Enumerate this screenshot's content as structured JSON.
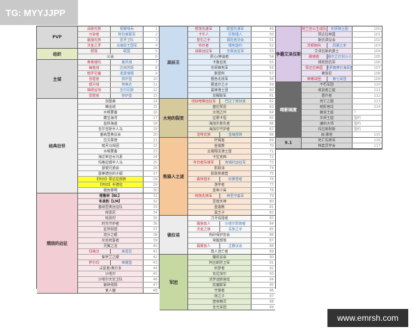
{
  "watermark": "TG: MYYJJPP",
  "site": "www.emrsh.com",
  "colors": {
    "faction_a": "#c2344a",
    "faction_b": "#3d7cc0",
    "highlight": "#ffff33"
  },
  "blocks": [
    {
      "groups": [
        {
          "name": "PVP",
          "cat_bg": "#d9d9d9",
          "row_bg": "#f2f2f2",
          "rows": [
            {
              "n": "1",
              "a": "战歌氏族",
              "b": "银翼哨兵"
            },
            {
              "n": "2",
              "a": "污染者",
              "b": "阿拉索联军"
            },
            {
              "n": "3",
              "a": "霜狼氏族",
              "b": "雷矛卫队"
            },
            {
              "n": "4",
              "a": "沃金之矛",
              "b": "乌瑞恩王国军"
            }
          ]
        },
        {
          "name": "组织",
          "cat_bg": "#e4ebc4",
          "row_bg": "#f2f2f2",
          "rows": [
            {
              "n": "5",
              "a": "部落",
              "b": "联盟"
            },
            {
              "n": "6",
              "t": "公会"
            }
          ]
        },
        {
          "name": "主城",
          "cat_bg": "#d9d9d9",
          "row_bg": "#f2f2f2",
          "rows": [
            {
              "n": "7",
              "a": "奥格瑞玛",
              "b": "暴风城"
            },
            {
              "n": "8",
              "a": "幽暗城",
              "b": "达纳苏斯"
            },
            {
              "n": "9",
              "a": "暗矛巨魔",
              "b": "诺莫瑞根"
            },
            {
              "n": "10",
              "a": "雷霆崖",
              "b": "铁炉堡"
            },
            {
              "n": "11",
              "a": "银月城",
              "b": "埃索达"
            },
            {
              "n": "12",
              "a": "锦绣谷地",
              "b": "吉尔尼斯"
            },
            {
              "n": "13",
              "a": "雷霆崖",
              "b": "铁炉堡"
            }
          ]
        },
        {
          "name": "经典旧世",
          "cat_bg": "#ececec",
          "row_bg": "#f7f7f7",
          "rows": [
            {
              "n": "14",
              "t": "加基森"
            },
            {
              "n": "15",
              "t": "棘齿城"
            },
            {
              "n": "16",
              "t": "木喉要塞"
            },
            {
              "n": "17",
              "t": "藏宝海湾"
            },
            {
              "n": "18",
              "t": "血帆海盗"
            },
            {
              "n": "19",
              "t": "吉尔吉斯半人马"
            },
            {
              "n": "20",
              "t": "塞纳里奥议会"
            },
            {
              "n": "21",
              "t": "拉文霍德"
            },
            {
              "n": "22",
              "t": "暗月马戏团"
            },
            {
              "n": "23",
              "t": "木喉要塞"
            },
            {
              "n": "24",
              "t": "海达希亚水元素"
            },
            {
              "n": "25",
              "t": "玛格拉姆半人马"
            },
            {
              "n": "26",
              "t": "瑟银兄弟会"
            },
            {
              "n": "27",
              "t": "瑟莱德丝的子嗣"
            },
            {
              "n": "28",
              "t": "【怀旧】赞达拉部族",
              "hl": true
            },
            {
              "n": "29",
              "t": "【怀旧】手德拉",
              "hl": true
            },
            {
              "n": "30",
              "t": "银色黎明"
            }
          ]
        },
        {
          "name": "燃烧的远征",
          "cat_bg": "#f2cdd3",
          "row_bg": "#f9e6e9",
          "rows": [
            {
              "n": "31",
              "t": "塔鲁林【BL】",
              "bold": true
            },
            {
              "n": "32",
              "t": "冬泉豹【LM】",
              "bold": true
            },
            {
              "n": "33",
              "t": "塞纳里奥远征队"
            },
            {
              "n": "34",
              "t": "库雷尼"
            },
            {
              "n": "35",
              "t": "哈孜村"
            },
            {
              "n": "36",
              "t": "时光守护者"
            },
            {
              "n": "37",
              "t": "星界财团"
            },
            {
              "n": "38",
              "t": "流沙之眼"
            },
            {
              "n": "39",
              "t": "灰舌死誓者"
            },
            {
              "n": "40",
              "t": "灵翼之龙"
            },
            {
              "n": "41",
              "a": "玛格汉",
              "b": "库雷尼"
            },
            {
              "n": "42",
              "t": "紫罗兰之眼"
            },
            {
              "n": "43",
              "a": "萨尔玛",
              "b": "荣耀堡"
            },
            {
              "n": "44",
              "t": "占星者/奥尔多"
            },
            {
              "n": "45",
              "t": "沙塔尔"
            },
            {
              "n": "46",
              "t": "沙塔尔天空卫队"
            },
            {
              "n": "47",
              "t": "破碎残阳"
            },
            {
              "n": "48",
              "t": "食人魔"
            }
          ]
        }
      ]
    },
    {
      "groups": [
        {
          "name": "巫妖王",
          "cat_bg": "#c9dcf0",
          "row_bg": "#e4eef9",
          "rows": [
            {
              "n": "49",
              "a": "部落先遣军",
              "b": "联盟先遣军"
            },
            {
              "n": "50",
              "a": "卡牛人",
              "b": "巨熊猎人"
            },
            {
              "n": "51",
              "a": "复仇之手",
              "b": "探险者协会"
            },
            {
              "n": "52",
              "a": "夺日者",
              "b": "银色盟约"
            },
            {
              "n": "53",
              "a": "战歌远征军",
              "b": "无畏远征军"
            },
            {
              "n": "54",
              "t": "肝心/神谕者"
            },
            {
              "n": "55",
              "t": "卡鲁亚克"
            },
            {
              "n": "56",
              "t": "灰烬审判军"
            },
            {
              "n": "57",
              "t": "斯雷利"
            },
            {
              "n": "58",
              "t": "银色北伐军"
            },
            {
              "n": "59",
              "t": "霍迪尔之子"
            },
            {
              "n": "60",
              "t": "黑锋骑士团"
            },
            {
              "n": "61",
              "t": "龙眠联军"
            }
          ]
        },
        {
          "name": "大地的裂变",
          "cat_bg": "#d6c99c",
          "row_bg": "#efe9d3",
          "rows": [
            {
              "n": "62",
              "a": "地狱咆哮远征军",
              "b": "巴拉丁典狱官"
            },
            {
              "n": "63",
              "t": "塞拉赞恩"
            },
            {
              "n": "64",
              "t": "大地之环"
            },
            {
              "n": "65",
              "t": "拉穆卡恒"
            },
            {
              "n": "66",
              "t": "海加尔复仇者"
            },
            {
              "n": "67",
              "t": "海加尔守护者"
            },
            {
              "n": "68",
              "a": "龙喉氏族",
              "b": "蛮锤部族"
            }
          ]
        },
        {
          "name": "熊猫人之谜",
          "cat_bg": "#f6c799",
          "row_bg": "#fbe6d4",
          "rows": [
            {
              "n": "69",
              "t": "阡陌客"
            },
            {
              "n": "70",
              "t": "金莲教"
            },
            {
              "n": "71",
              "t": "云端翔龙骑士团"
            },
            {
              "n": "72",
              "t": "卡拉克西"
            },
            {
              "n": "73",
              "a": "夺日者先锋军",
              "b": "肯瑞托远征军"
            },
            {
              "n": "74",
              "t": "影踪派"
            },
            {
              "n": "75",
              "t": "影踪突袭营"
            },
            {
              "n": "76",
              "a": "森林猎手",
              "b": "织雾僧者"
            },
            {
              "n": "77",
              "t": "游学者"
            },
            {
              "n": "78",
              "t": "皇帝少昊"
            },
            {
              "n": "79",
              "a": "统御先锋军",
              "b": "神圣守备军"
            },
            {
              "n": "80",
              "t": "至尊天神"
            },
            {
              "n": "81",
              "t": "金莲教"
            },
            {
              "n": "82",
              "t": "黑王子"
            }
          ]
        },
        {
          "name": "德拉诺",
          "cat_bg": "#ececec",
          "row_bg": "#f7f7f7",
          "rows": [
            {
              "n": "83",
              "t": "刀牙追猎者"
            },
            {
              "n": "84",
              "a": "霜狼兽人",
              "b": "沙塔尔防御者"
            },
            {
              "n": "85",
              "a": "沃金之锋",
              "b": "先知之手"
            },
            {
              "n": "86",
              "t": "热砂保护协会"
            },
            {
              "n": "87",
              "t": "常醒部落"
            },
            {
              "n": "88",
              "a": "霜翼兽人",
              "b": "主教议会"
            },
            {
              "n": "89",
              "t": "鸦人流亡者"
            }
          ]
        },
        {
          "name": "军团",
          "cat_bg": "#c6d9a2",
          "row_bg": "#e3edd1",
          "rows": [
            {
              "n": "90",
              "t": "魔纹议会"
            },
            {
              "n": "91",
              "t": "阿古斯防卫军"
            },
            {
              "n": "92",
              "t": "织梦者"
            },
            {
              "n": "93",
              "t": "瓦拉加尔"
            },
            {
              "n": "94",
              "t": "法罗迪斯宫廷"
            },
            {
              "n": "95",
              "t": "抗魔联军"
            },
            {
              "n": "96",
              "t": "守望者"
            },
            {
              "n": "97",
              "t": "夜之子"
            },
            {
              "n": "98",
              "t": "堕夜精灵"
            },
            {
              "n": "99",
              "t": "全光军团"
            }
          ]
        }
      ]
    },
    {
      "groups": [
        {
          "name": "争霸艾泽拉斯",
          "cat_bg": "#d9c8e6",
          "row_bg": "#ede4f3",
          "rows": [
            {
              "n": "100",
              "a": "塔兰吉公主战队",
              "b": "灰烬骑士团"
            },
            {
              "n": "101",
              "t": "赞达拉帝国"
            },
            {
              "n": "102",
              "t": "斯托颂议会"
            },
            {
              "n": "103",
              "a": "沃顿佣兵",
              "b": "风暴之末"
            },
            {
              "n": "104",
              "t": "艾泽拉斯的勇士"
            },
            {
              "n": "105",
              "a": "破镜者",
              "b": "潮汐之刃剑斗人"
            },
            {
              "n": "106",
              "t": "锈栓抵抗军"
            },
            {
              "n": "107",
              "a": "赞达拉帝国",
              "b": "普罗德摩尔海军部"
            },
            {
              "n": "108",
              "t": "莱加尼"
            },
            {
              "n": "109",
              "a": "荣耀战团",
              "b": "第七军团"
            }
          ]
        },
        {
          "name": "暗影国度",
          "cat_bg": "#6b6b6b",
          "cat_fg": "#ffffff",
          "row_bg": "#d9d9d9",
          "rows": [
            {
              "n": "110",
              "t": "不朽军团"
            },
            {
              "n": "111",
              "t": "收割者之庭"
            },
            {
              "n": "112",
              "t": "晋升者"
            },
            {
              "n": "113",
              "t": "死亡之握"
            },
            {
              "n": "114",
              "t": "暗影宫廷"
            },
            {
              "n": "?",
              "t": "魅资王庭",
              "ntxt": true
            },
            {
              "n": "盟约",
              "t": "灰烬王庭",
              "ntxt": true
            },
            {
              "n": "盟约",
              "t": "编织大师",
              "ntxt": true
            },
            {
              "n": "盟约",
              "t": "玛拉斯默斯",
              "ntxt": true
            },
            {
              "n": "115",
              "t": "威·娜塔"
            }
          ]
        },
        {
          "name": "9.1",
          "cat_bg": "#c8c8c8",
          "row_bg": "#d9d9d9",
          "rows": [
            {
              "n": "116",
              "t": "死亡先锋军"
            },
            {
              "n": "117",
              "t": "档案员学会"
            }
          ]
        }
      ]
    }
  ]
}
